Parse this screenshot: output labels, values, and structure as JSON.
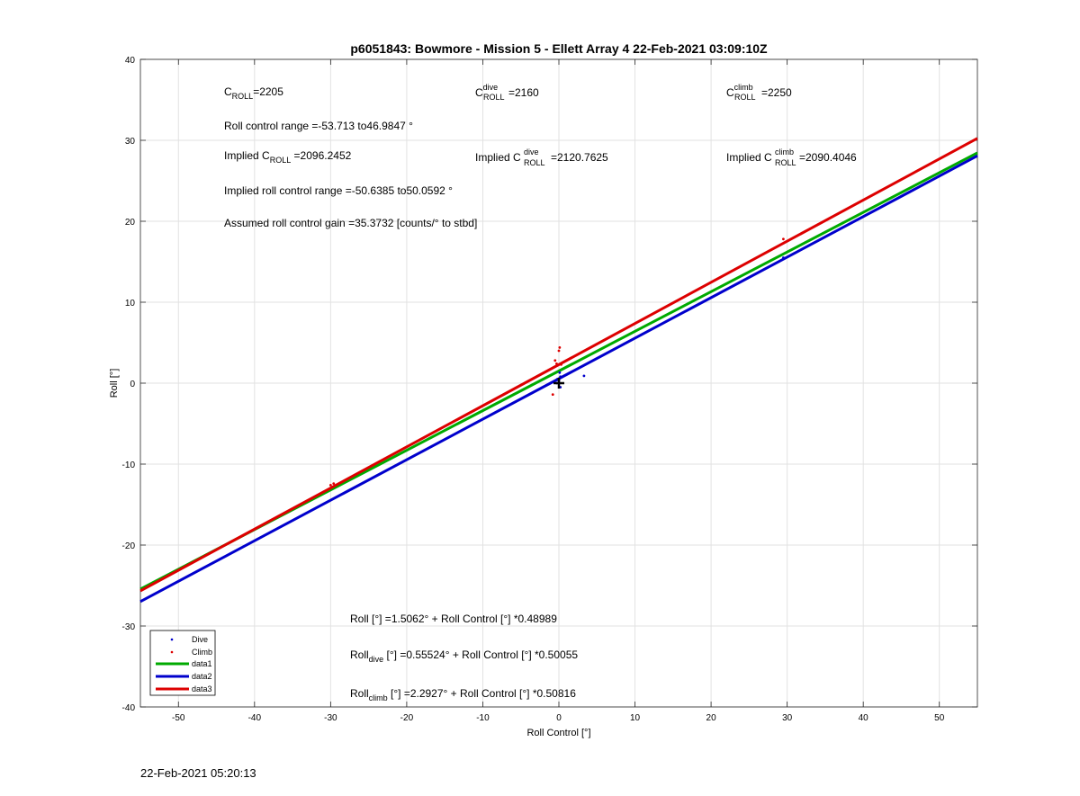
{
  "chart_data": {
    "type": "scatter",
    "title": "p6051843: Bowmore - Mission 5 - Ellett Array 4 22-Feb-2021 03:09:10Z",
    "xlabel": "Roll Control [°]",
    "ylabel": "Roll [°]",
    "xlim": [
      -55,
      55
    ],
    "ylim": [
      -40,
      40
    ],
    "xticks": [
      -50,
      -40,
      -30,
      -20,
      -10,
      0,
      10,
      20,
      30,
      40,
      50
    ],
    "yticks": [
      -40,
      -30,
      -20,
      -10,
      0,
      10,
      20,
      30,
      40
    ],
    "grid": true,
    "legend_position": "bottom-left",
    "series": [
      {
        "name": "Dive",
        "kind": "points",
        "color": "#0000cc",
        "points": [
          [
            0,
            0.3
          ],
          [
            0.2,
            0.8
          ],
          [
            -0.2,
            0.5
          ],
          [
            0.1,
            1.3
          ],
          [
            3.3,
            0.9
          ],
          [
            29.5,
            15.5
          ],
          [
            -0.3,
            0.0
          ],
          [
            0.2,
            -0.5
          ]
        ]
      },
      {
        "name": "Climb",
        "kind": "points",
        "color": "#dd0000",
        "points": [
          [
            -0.5,
            2.8
          ],
          [
            -0.3,
            2.4
          ],
          [
            0.0,
            4.0
          ],
          [
            0.1,
            4.4
          ],
          [
            0.3,
            2.3
          ],
          [
            0.6,
            2.6
          ],
          [
            -0.8,
            -1.4
          ],
          [
            -30.0,
            -12.6
          ],
          [
            -29.6,
            -12.4
          ],
          [
            29.5,
            17.8
          ]
        ]
      },
      {
        "name": "data1",
        "kind": "line",
        "color": "#00aa00",
        "intercept": 1.5062,
        "slope": 0.48989
      },
      {
        "name": "data2",
        "kind": "line",
        "color": "#0000cc",
        "intercept": 0.55524,
        "slope": 0.50055
      },
      {
        "name": "data3",
        "kind": "line",
        "color": "#dd0000",
        "intercept": 2.2927,
        "slope": 0.50816
      }
    ],
    "center_marker": [
      0,
      0
    ],
    "annotations": {
      "croll_label": "=2205",
      "croll_dive_label": "=2160",
      "croll_climb_label": "=2250",
      "range_text": "Roll control range =-53.713 to46.9847 °",
      "implied_prefix": "Implied ",
      "implied_croll": " =2096.2452",
      "implied_croll_dive": "=2120.7625",
      "implied_croll_climb": " =2090.4046",
      "implied_range_text": "Implied roll control range =-50.6385 to50.0592 °",
      "gain_text": "Assumed roll control gain =35.3732 [counts/° to stbd]",
      "eq1": "Roll [°] =1.5062° + Roll Control [°] *0.48989",
      "eq2_prefix": "Roll",
      "eq2_sub": "dive",
      "eq2_rest": " [°] =0.55524° + Roll Control [°] *0.50055",
      "eq3_prefix": "Roll",
      "eq3_sub": "climb",
      "eq3_rest": " [°] =2.2927° + Roll Control [°] *0.50816",
      "c_letter": "C",
      "sub_roll": "ROLL",
      "sup_dive": "dive",
      "sup_climb": "climb"
    }
  },
  "footer_timestamp": "22-Feb-2021 05:20:13"
}
